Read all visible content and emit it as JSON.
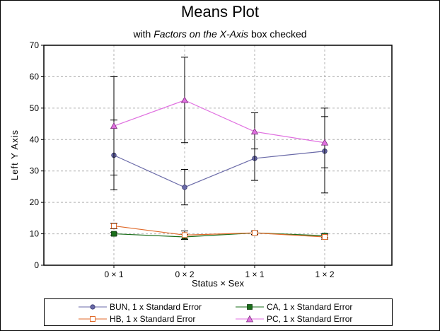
{
  "colors": {
    "bun": "#6a6aa8",
    "ca": "#1a6e1a",
    "hb": "#e06a2a",
    "pc": "#e070e0",
    "error_bar": "#000000",
    "grid": "#b0b0b0"
  },
  "chart_data": {
    "type": "line",
    "title": "Means Plot",
    "subtitle_prefix": "with ",
    "subtitle_italic": "Factors on the X-Axis",
    "subtitle_suffix": " box checked",
    "xlabel": "Status × Sex",
    "ylabel": "Left Y Axis",
    "categories": [
      "0 × 1",
      "0 × 2",
      "1 × 1",
      "1 × 2"
    ],
    "ylim": [
      0,
      70
    ],
    "yticks": [
      0,
      10,
      20,
      30,
      40,
      50,
      60,
      70
    ],
    "grid": true,
    "legend_position": "bottom",
    "series": [
      {
        "name": "BUN, 1 x Standard Error",
        "key": "bun",
        "marker": "circle",
        "values": [
          35,
          24.8,
          34,
          36.3
        ],
        "error_lower": [
          24,
          19.2,
          27,
          23
        ],
        "error_upper": [
          46.2,
          30.5,
          37,
          47.3
        ]
      },
      {
        "name": "CA, 1 x Standard Error",
        "key": "ca",
        "marker": "square-filled",
        "values": [
          10,
          9,
          10.3,
          9.4
        ],
        "error_lower": [
          9.6,
          8.2,
          9.8,
          8.8
        ],
        "error_upper": [
          10.4,
          9.8,
          10.8,
          10
        ]
      },
      {
        "name": "HB, 1 x Standard Error",
        "key": "hb",
        "marker": "square-open",
        "values": [
          12.5,
          9.6,
          10.3,
          9
        ],
        "error_lower": [
          11.6,
          8.3,
          9.7,
          8.3
        ],
        "error_upper": [
          13.4,
          10.9,
          10.9,
          9.7
        ]
      },
      {
        "name": "PC, 1 x Standard Error",
        "key": "pc",
        "marker": "triangle",
        "values": [
          44.3,
          52.5,
          42.5,
          39
        ],
        "error_lower": [
          28.7,
          39,
          27,
          31
        ],
        "error_upper": [
          60,
          66.2,
          48.5,
          50
        ]
      }
    ]
  }
}
